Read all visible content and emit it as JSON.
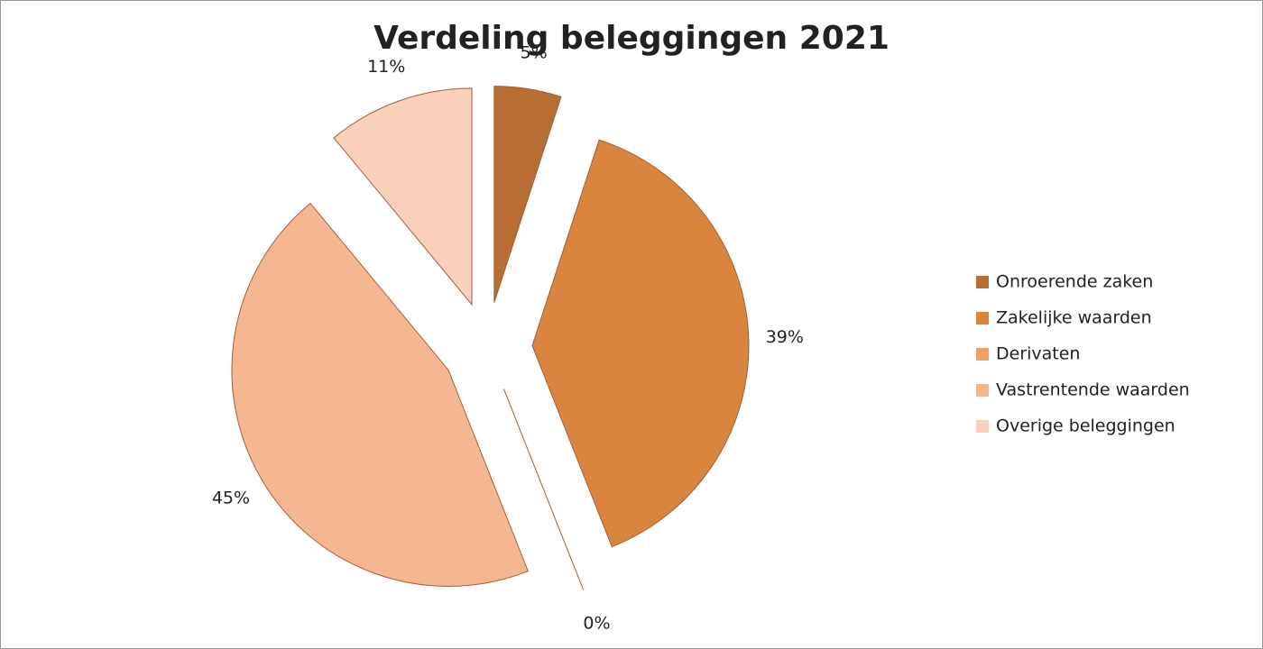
{
  "chart_data": {
    "type": "pie",
    "title": "Verdeling beleggingen 2021",
    "categories": [
      "Onroerende zaken",
      "Zakelijke waarden",
      "Derivaten",
      "Vastrentende waarden",
      "Overige beleggingen"
    ],
    "values": [
      5,
      39,
      0,
      45,
      11
    ],
    "value_labels": [
      "5%",
      "39%",
      "0%",
      "45%",
      "11%"
    ],
    "colors": [
      "#b86e32",
      "#d9843f",
      "#f0a060",
      "#f5b692",
      "#f9d0bb"
    ],
    "legend": "right"
  }
}
